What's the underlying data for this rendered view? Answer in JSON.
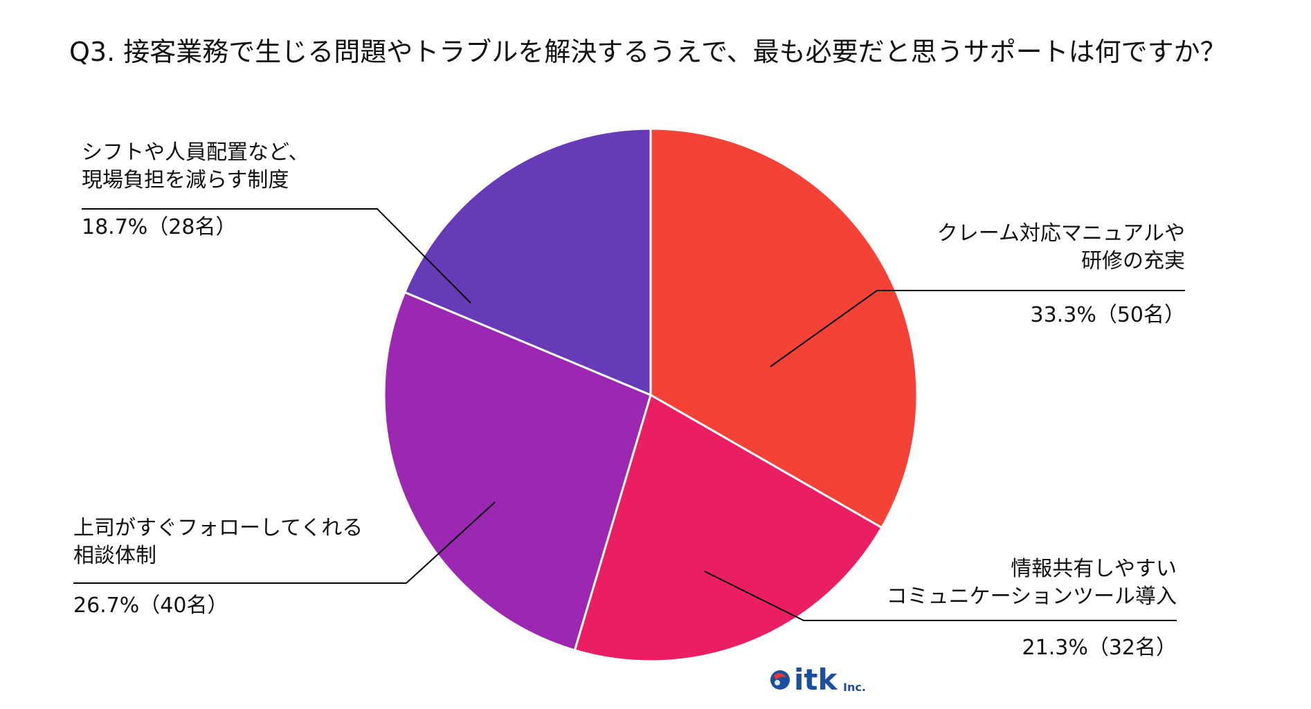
{
  "chart_data": {
    "type": "pie",
    "title": "Q3. 接客業務で生じる問題やトラブルを解決するうえで、最も必要だと思うサポートは何ですか？",
    "start_angle_deg": 0,
    "direction": "clockwise",
    "slices": [
      {
        "name": "クレーム対応マニュアルや研修の充実",
        "label_lines": [
          "クレーム対応マニュアルや",
          "研修の充実"
        ],
        "value": 33.3,
        "count": 50,
        "value_label": "33.3%（50名）",
        "color": "#F44336"
      },
      {
        "name": "情報共有しやすいコミュニケーションツール導入",
        "label_lines": [
          "情報共有しやすい",
          "コミュニケーションツール導入"
        ],
        "value": 21.3,
        "count": 32,
        "value_label": "21.3%（32名）",
        "color": "#E91E63"
      },
      {
        "name": "上司がすぐフォローしてくれる相談体制",
        "label_lines": [
          "上司がすぐフォローしてくれる",
          "相談体制"
        ],
        "value": 26.7,
        "count": 40,
        "value_label": "26.7%（40名）",
        "color": "#9C27B0"
      },
      {
        "name": "シフトや人員配置など、現場負担を減らす制度",
        "label_lines": [
          "シフトや人員配置など、",
          "現場負担を減らす制度"
        ],
        "value": 18.7,
        "count": 28,
        "value_label": "18.7%（28名）",
        "color": "#673AB7"
      }
    ],
    "slice_border_color": "#FFFFFF",
    "leader_line_color": "#000000"
  },
  "logo": {
    "text": "itk",
    "suffix": "Inc.",
    "color": "#1A4FA0",
    "accent_color": "#E53935"
  }
}
